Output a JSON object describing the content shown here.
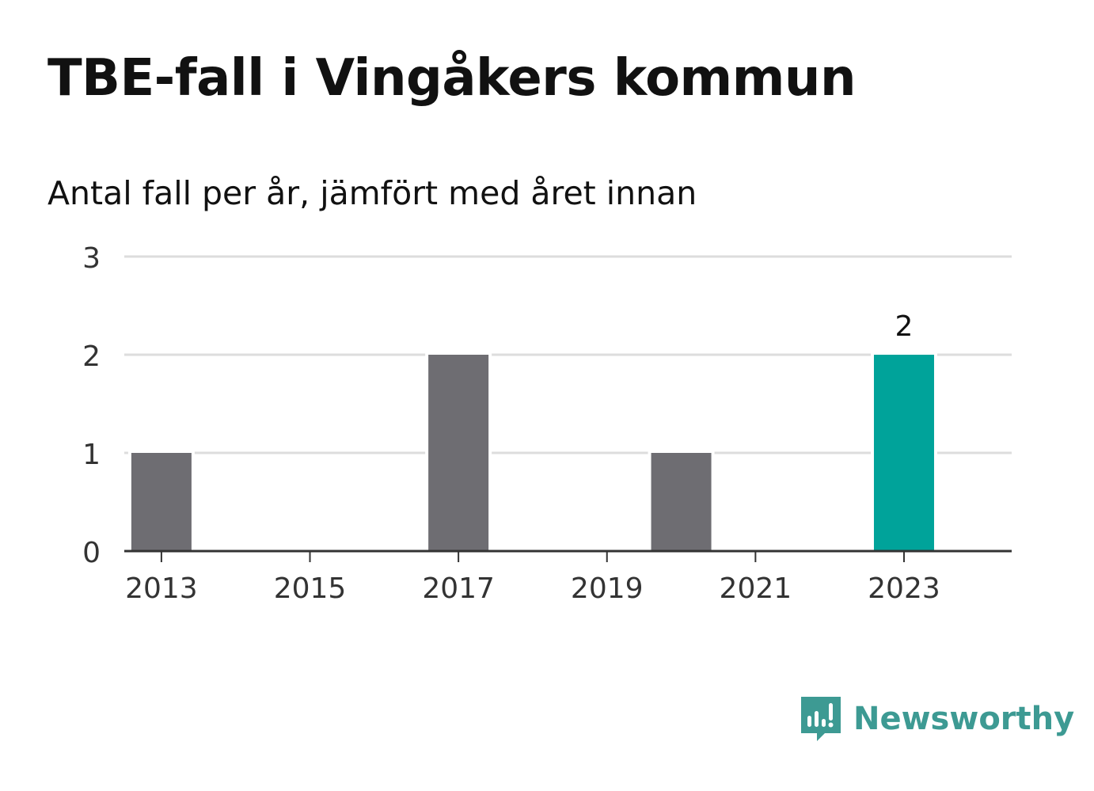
{
  "header": {
    "title": "TBE-fall i Vingåkers kommun",
    "subtitle": "Antal fall per år, jämfört med året innan"
  },
  "chart_data": {
    "type": "bar",
    "title": "TBE-fall i Vingåkers kommun",
    "subtitle": "Antal fall per år, jämfört med året innan",
    "x": [
      2013,
      2014,
      2015,
      2016,
      2017,
      2018,
      2019,
      2020,
      2021,
      2022,
      2023
    ],
    "values": [
      1,
      0,
      0,
      0,
      2,
      0,
      0,
      1,
      0,
      0,
      2
    ],
    "xticks": [
      "2013",
      "2015",
      "2017",
      "2019",
      "2021",
      "2023"
    ],
    "yticks": [
      0,
      1,
      2,
      3
    ],
    "ylim": [
      0,
      3
    ],
    "grid": true,
    "highlight": {
      "x": 2023,
      "value_label": "2"
    },
    "colors": {
      "bar": "#6e6d72",
      "highlight": "#00a39a",
      "grid": "#dddddd",
      "axis": "#333333"
    }
  },
  "brand": {
    "name": "Newsworthy",
    "icon": "newsworthy-logo-icon",
    "color": "#3d9a93"
  }
}
